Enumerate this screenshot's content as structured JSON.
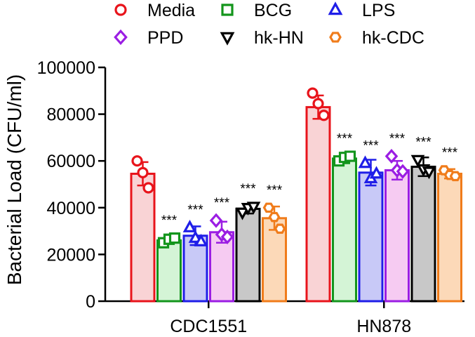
{
  "chart_data": {
    "type": "bar",
    "ylabel": "Bacterial Load  (CFU/ml)",
    "ylim": [
      0,
      100000
    ],
    "yticks": [
      0,
      20000,
      40000,
      60000,
      80000,
      100000
    ],
    "ytick_labels": [
      "0",
      "20000",
      "40000",
      "60000",
      "80000",
      "100000"
    ],
    "categories": [
      "CDC1551",
      "HN878"
    ],
    "legend": {
      "position": "top"
    },
    "series": [
      {
        "name": "Media",
        "marker": "circle",
        "color": "#e8141b",
        "fill": "#f9d3d5",
        "values": [
          54500,
          83000
        ],
        "errors": [
          5000,
          5000
        ],
        "significance": [
          "",
          ""
        ],
        "points": [
          [
            60000,
            55000,
            48500
          ],
          [
            89000,
            84500,
            79500
          ]
        ]
      },
      {
        "name": "BCG",
        "marker": "square",
        "color": "#13951c",
        "fill": "#d4f4d6",
        "values": [
          26000,
          61000
        ],
        "errors": [
          1500,
          2000
        ],
        "significance": [
          "***",
          "***"
        ],
        "points": [
          [
            25000,
            26500,
            27000
          ],
          [
            60000,
            61500,
            62000
          ]
        ]
      },
      {
        "name": "LPS",
        "marker": "triangle-up",
        "color": "#1f1ee8",
        "fill": "#c8c9f7",
        "values": [
          28000,
          55000
        ],
        "errors": [
          4000,
          5500
        ],
        "significance": [
          "***",
          "***"
        ],
        "points": [
          [
            31500,
            27000,
            25500
          ],
          [
            59000,
            52500,
            54500
          ]
        ]
      },
      {
        "name": "PPD",
        "marker": "diamond",
        "color": "#9b1ee3",
        "fill": "#f6cbf2",
        "values": [
          29500,
          56000
        ],
        "errors": [
          4500,
          4000
        ],
        "significance": [
          "***",
          "***"
        ],
        "points": [
          [
            34500,
            28500,
            27500
          ],
          [
            62000,
            56000,
            55500
          ]
        ]
      },
      {
        "name": "hk-HN",
        "marker": "triangle-down",
        "color": "#000000",
        "fill": "#c8c8c8",
        "values": [
          39500,
          57500
        ],
        "errors": [
          2000,
          4000
        ],
        "significance": [
          "***",
          "***"
        ],
        "points": [
          [
            38000,
            40000,
            40500
          ],
          [
            60500,
            56500,
            55500
          ]
        ]
      },
      {
        "name": "hk-CDC",
        "marker": "hexagon",
        "color": "#f07c1b",
        "fill": "#fcd9b8",
        "values": [
          35500,
          54500
        ],
        "errors": [
          5000,
          2000
        ],
        "significance": [
          "***",
          "***"
        ],
        "points": [
          [
            40000,
            36000,
            31000
          ],
          [
            56000,
            54000,
            53500
          ]
        ]
      }
    ]
  }
}
